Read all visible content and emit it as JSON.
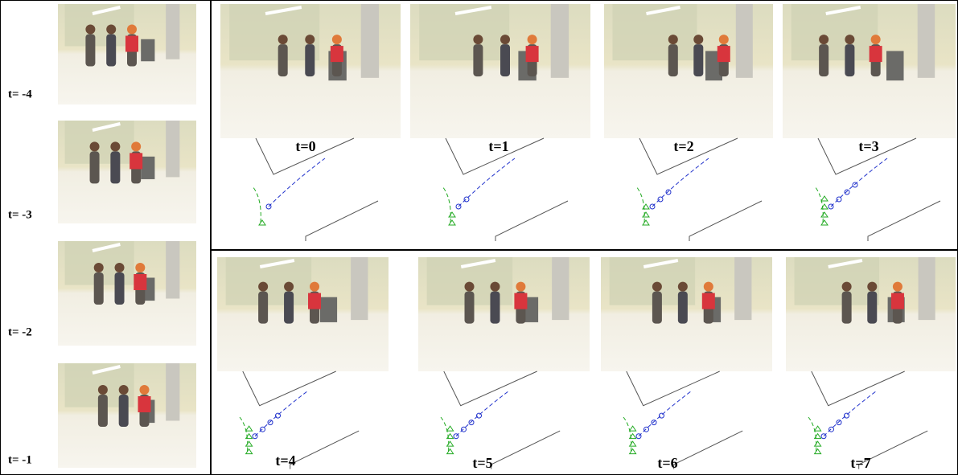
{
  "history_labels": [
    "t= -4",
    "t= -3",
    "t= -2",
    "t= -1"
  ],
  "top_row_labels": [
    "t=0",
    "t=1",
    "t=2",
    "t=3"
  ],
  "bottom_row_labels": [
    "t=4",
    "t=5",
    "t=6",
    "t=7"
  ]
}
